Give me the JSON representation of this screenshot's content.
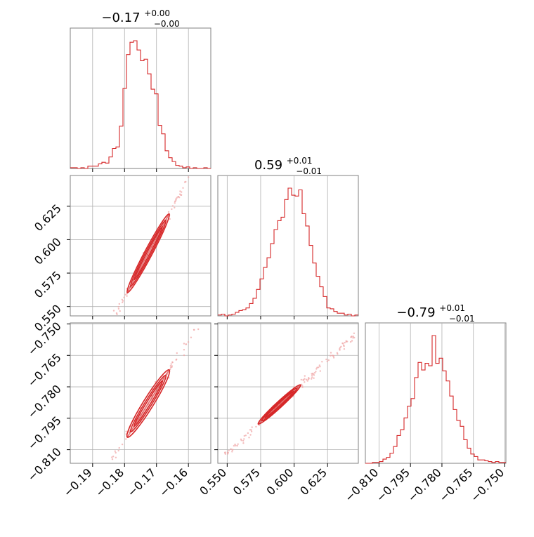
{
  "colors": {
    "accent": "#d62728",
    "accent_light": "#f0a8a8",
    "grid": "#b0b0b0",
    "frame": "#808080"
  },
  "parameters": [
    {
      "title_main": "−0.17",
      "title_sup": "+0.00",
      "title_sub": "−0.00",
      "median": -0.173,
      "range": [
        -0.197,
        -0.153
      ],
      "ticks": [
        -0.19,
        -0.18,
        -0.17,
        -0.16
      ],
      "tick_labels": [
        "−0.19",
        "−0.18",
        "−0.17",
        "−0.16"
      ]
    },
    {
      "title_main": "0.59",
      "title_sup": "+0.01",
      "title_sub": "−0.01",
      "median": 0.588,
      "range": [
        0.543,
        0.648
      ],
      "ticks": [
        0.55,
        0.575,
        0.6,
        0.625
      ],
      "tick_labels": [
        "0.550",
        "0.575",
        "0.600",
        "0.625"
      ]
    },
    {
      "title_main": "−0.79",
      "title_sup": "+0.01",
      "title_sub": "−0.01",
      "median": -0.789,
      "range": [
        -0.8165,
        -0.7495
      ],
      "ticks": [
        -0.81,
        -0.795,
        -0.78,
        -0.765,
        -0.75
      ],
      "tick_labels": [
        "−0.810",
        "−0.795",
        "−0.780",
        "−0.765",
        "−0.750"
      ]
    }
  ],
  "chart_data": {
    "type": "histogram",
    "histograms": [
      {
        "parameter": 0,
        "bin_range": [
          -0.197,
          -0.153
        ],
        "counts": [
          1,
          1,
          0,
          1,
          0,
          3,
          3,
          3,
          6,
          8,
          7,
          15,
          26,
          28,
          55,
          104,
          148,
          164,
          166,
          154,
          140,
          142,
          123,
          103,
          97,
          56,
          45,
          23,
          14,
          9,
          4,
          3,
          1,
          2,
          0,
          1,
          0,
          0,
          1,
          0
        ]
      },
      {
        "parameter": 1,
        "bin_range": [
          0.543,
          0.648
        ],
        "counts": [
          1,
          2,
          0,
          1,
          2,
          4,
          6,
          7,
          9,
          14,
          20,
          30,
          42,
          55,
          66,
          82,
          98,
          108,
          112,
          132,
          145,
          137,
          136,
          143,
          116,
          102,
          80,
          60,
          45,
          33,
          22,
          9,
          8,
          5,
          3,
          3,
          1,
          2,
          0,
          1
        ]
      },
      {
        "parameter": 2,
        "bin_range": [
          -0.8165,
          -0.7495
        ],
        "counts": [
          0,
          0,
          1,
          1,
          2,
          5,
          7,
          12,
          20,
          33,
          40,
          54,
          68,
          77,
          102,
          120,
          111,
          119,
          116,
          152,
          119,
          125,
          110,
          98,
          80,
          64,
          51,
          44,
          28,
          18,
          11,
          8,
          4,
          4,
          3,
          2,
          1,
          2,
          1,
          1
        ]
      }
    ],
    "scatter_pairs": [
      {
        "x_param": 0,
        "y_param": 1,
        "line_slope_per_x": 4.5,
        "x_span": [
          -0.196,
          -0.155
        ],
        "contour_widths": [
          0.0012,
          0.0022,
          0.0032
        ]
      },
      {
        "x_param": 0,
        "y_param": 2,
        "line_slope_per_x": 2.45,
        "x_span": [
          -0.196,
          -0.155
        ],
        "contour_widths": [
          0.001,
          0.0018,
          0.0027
        ]
      },
      {
        "x_param": 1,
        "y_param": 2,
        "line_slope_per_x": 0.59,
        "x_span": [
          0.546,
          0.645
        ],
        "contour_widths": [
          0.0006,
          0.0011,
          0.0016
        ]
      }
    ]
  }
}
